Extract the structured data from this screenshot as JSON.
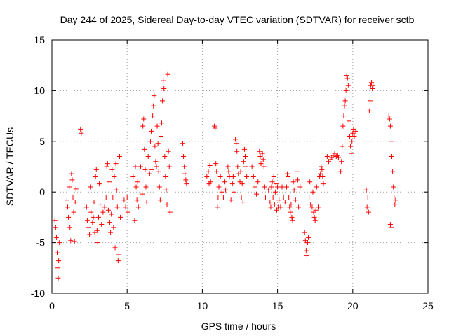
{
  "chart_data": {
    "type": "scatter",
    "title": "Day 244 of 2025, Sidereal Day-to-day VTEC variation (SDTVAR) for receiver sctb",
    "xlabel": "GPS time / hours",
    "ylabel": "SDTVAR / TECUs",
    "xlim": [
      0,
      25
    ],
    "ylim": [
      -10,
      15
    ],
    "x_ticks": [
      0,
      5,
      10,
      15,
      20,
      25
    ],
    "y_ticks": [
      -10,
      -5,
      0,
      5,
      10,
      15
    ],
    "x_tick_labels": [
      "0",
      "5",
      "10",
      "15",
      "20",
      "25"
    ],
    "y_tick_labels": [
      "-10",
      "-5",
      "0",
      "5",
      "10",
      "15"
    ],
    "grid": true,
    "marker": "+",
    "marker_color": "#ff0000",
    "series": [
      {
        "name": "SDTVAR",
        "points": [
          [
            0.2,
            -2.8
          ],
          [
            0.25,
            -3.5
          ],
          [
            0.3,
            -4.5
          ],
          [
            0.35,
            -6.0
          ],
          [
            0.4,
            -7.5
          ],
          [
            0.42,
            -8.5
          ],
          [
            0.45,
            -6.8
          ],
          [
            0.5,
            -5.0
          ],
          [
            1.0,
            -0.8
          ],
          [
            1.05,
            -1.5
          ],
          [
            1.1,
            -2.5
          ],
          [
            1.15,
            0.5
          ],
          [
            1.2,
            -3.5
          ],
          [
            1.25,
            -4.8
          ],
          [
            1.3,
            1.8
          ],
          [
            1.35,
            1.2
          ],
          [
            1.4,
            -0.5
          ],
          [
            1.45,
            -2.0
          ],
          [
            1.5,
            -4.9
          ],
          [
            1.55,
            -1.0
          ],
          [
            1.6,
            0.3
          ],
          [
            1.9,
            6.2
          ],
          [
            1.95,
            5.8
          ],
          [
            2.3,
            -1.5
          ],
          [
            2.35,
            -2.8
          ],
          [
            2.4,
            -3.5
          ],
          [
            2.5,
            -4.2
          ],
          [
            2.55,
            0.5
          ],
          [
            2.6,
            -2.0
          ],
          [
            2.7,
            -3.0
          ],
          [
            2.75,
            -2.5
          ],
          [
            2.8,
            -1.0
          ],
          [
            2.85,
            -4.0
          ],
          [
            2.9,
            1.5
          ],
          [
            2.95,
            2.2
          ],
          [
            3.0,
            -3.8
          ],
          [
            3.05,
            -5.0
          ],
          [
            3.1,
            -2.5
          ],
          [
            3.15,
            0.8
          ],
          [
            3.2,
            -1.2
          ],
          [
            3.3,
            -3.2
          ],
          [
            3.4,
            -2.0
          ],
          [
            3.5,
            -1.5
          ],
          [
            3.6,
            -0.5
          ],
          [
            3.65,
            2.5
          ],
          [
            3.7,
            2.8
          ],
          [
            3.75,
            -1.8
          ],
          [
            3.8,
            1.0
          ],
          [
            3.85,
            -3.0
          ],
          [
            3.9,
            -4.0
          ],
          [
            3.95,
            -2.2
          ],
          [
            4.0,
            2.2
          ],
          [
            4.05,
            -0.5
          ],
          [
            4.1,
            -3.5
          ],
          [
            4.15,
            1.5
          ],
          [
            4.2,
            -5.5
          ],
          [
            4.25,
            2.8
          ],
          [
            4.3,
            0.2
          ],
          [
            4.35,
            -1.5
          ],
          [
            4.4,
            -6.8
          ],
          [
            4.45,
            -6.2
          ],
          [
            4.5,
            3.5
          ],
          [
            4.55,
            -2.5
          ],
          [
            4.8,
            -0.8
          ],
          [
            4.9,
            -1.5
          ],
          [
            5.0,
            -0.5
          ],
          [
            5.05,
            -2.0
          ],
          [
            5.4,
            1.5
          ],
          [
            5.5,
            -2.8
          ],
          [
            5.55,
            2.5
          ],
          [
            5.6,
            0.5
          ],
          [
            5.65,
            -0.8
          ],
          [
            5.7,
            1.0
          ],
          [
            5.75,
            -1.5
          ],
          [
            5.9,
            2.5
          ],
          [
            6.0,
            -0.2
          ],
          [
            6.05,
            6.5
          ],
          [
            6.1,
            7.2
          ],
          [
            6.15,
            4.2
          ],
          [
            6.2,
            2.2
          ],
          [
            6.25,
            0.5
          ],
          [
            6.3,
            -1.0
          ],
          [
            6.4,
            3.5
          ],
          [
            6.5,
            1.8
          ],
          [
            6.55,
            5.0
          ],
          [
            6.6,
            6.0
          ],
          [
            6.65,
            2.2
          ],
          [
            6.7,
            7.5
          ],
          [
            6.75,
            8.5
          ],
          [
            6.8,
            9.5
          ],
          [
            6.85,
            4.5
          ],
          [
            6.9,
            3.0
          ],
          [
            6.95,
            2.5
          ],
          [
            7.0,
            6.5
          ],
          [
            7.05,
            4.8
          ],
          [
            7.1,
            2.0
          ],
          [
            7.15,
            0.5
          ],
          [
            7.2,
            -0.8
          ],
          [
            7.25,
            5.5
          ],
          [
            7.3,
            6.8
          ],
          [
            7.35,
            9.0
          ],
          [
            7.4,
            11.0
          ],
          [
            7.45,
            10.2
          ],
          [
            7.5,
            3.5
          ],
          [
            7.55,
            1.5
          ],
          [
            7.6,
            0.2
          ],
          [
            7.65,
            -1.2
          ],
          [
            7.7,
            11.6
          ],
          [
            7.75,
            4.0
          ],
          [
            7.8,
            2.5
          ],
          [
            7.85,
            -2.0
          ],
          [
            8.7,
            4.8
          ],
          [
            8.75,
            3.5
          ],
          [
            8.8,
            2.5
          ],
          [
            8.85,
            1.8
          ],
          [
            8.9,
            1.2
          ],
          [
            8.95,
            0.8
          ],
          [
            10.3,
            1.5
          ],
          [
            10.4,
            2.0
          ],
          [
            10.45,
            0.8
          ],
          [
            10.5,
            2.6
          ],
          [
            10.55,
            1.0
          ],
          [
            10.8,
            6.5
          ],
          [
            10.85,
            6.3
          ],
          [
            10.9,
            2.8
          ],
          [
            10.95,
            2.0
          ],
          [
            11.0,
            -1.5
          ],
          [
            11.05,
            -0.5
          ],
          [
            11.1,
            0.5
          ],
          [
            11.2,
            1.5
          ],
          [
            11.3,
            0.0
          ],
          [
            11.4,
            -0.5
          ],
          [
            11.5,
            1.0
          ],
          [
            11.55,
            0.2
          ],
          [
            11.7,
            2.5
          ],
          [
            11.75,
            2.0
          ],
          [
            11.8,
            1.5
          ],
          [
            11.9,
            -0.8
          ],
          [
            12.0,
            0.8
          ],
          [
            12.05,
            1.5
          ],
          [
            12.1,
            0.0
          ],
          [
            12.2,
            5.2
          ],
          [
            12.25,
            4.8
          ],
          [
            12.3,
            4.0
          ],
          [
            12.35,
            2.5
          ],
          [
            12.4,
            1.8
          ],
          [
            12.5,
            1.0
          ],
          [
            12.55,
            2.0
          ],
          [
            12.6,
            -0.5
          ],
          [
            12.65,
            0.8
          ],
          [
            12.7,
            -1.0
          ],
          [
            12.75,
            3.0
          ],
          [
            12.8,
            4.2
          ],
          [
            12.85,
            3.5
          ],
          [
            12.9,
            2.5
          ],
          [
            12.95,
            1.5
          ],
          [
            13.3,
            2.5
          ],
          [
            13.4,
            1.5
          ],
          [
            13.5,
            0.5
          ],
          [
            13.6,
            -0.2
          ],
          [
            13.7,
            1.0
          ],
          [
            13.8,
            4.0
          ],
          [
            13.85,
            3.5
          ],
          [
            13.9,
            2.8
          ],
          [
            14.0,
            3.8
          ],
          [
            14.05,
            3.2
          ],
          [
            14.1,
            2.5
          ],
          [
            14.15,
            0.5
          ],
          [
            14.2,
            -0.5
          ],
          [
            14.4,
            0.2
          ],
          [
            14.5,
            -1.0
          ],
          [
            14.55,
            -1.5
          ],
          [
            14.6,
            0.5
          ],
          [
            14.65,
            1.0
          ],
          [
            14.7,
            -0.5
          ],
          [
            14.75,
            1.5
          ],
          [
            14.8,
            -1.2
          ],
          [
            14.85,
            0.0
          ],
          [
            14.9,
            0.8
          ],
          [
            14.95,
            -1.8
          ],
          [
            15.0,
            0.5
          ],
          [
            15.05,
            -1.5
          ],
          [
            15.1,
            -0.8
          ],
          [
            15.2,
            -1.5
          ],
          [
            15.3,
            0.5
          ],
          [
            15.4,
            -0.5
          ],
          [
            15.5,
            -1.0
          ],
          [
            15.6,
            0.5
          ],
          [
            15.65,
            1.8
          ],
          [
            15.7,
            1.5
          ],
          [
            15.75,
            -0.5
          ],
          [
            15.8,
            -1.5
          ],
          [
            15.85,
            -2.0
          ],
          [
            15.9,
            -1.2
          ],
          [
            15.95,
            -2.5
          ],
          [
            16.0,
            -2.8
          ],
          [
            16.05,
            1.0
          ],
          [
            16.1,
            0.2
          ],
          [
            16.2,
            -0.8
          ],
          [
            16.3,
            2.0
          ],
          [
            16.35,
            1.2
          ],
          [
            16.4,
            -1.5
          ],
          [
            16.5,
            0.5
          ],
          [
            16.8,
            -4.0
          ],
          [
            16.85,
            -4.8
          ],
          [
            16.9,
            -5.8
          ],
          [
            16.95,
            -6.3
          ],
          [
            17.0,
            -5.0
          ],
          [
            17.05,
            -4.5
          ],
          [
            17.1,
            -0.5
          ],
          [
            17.15,
            1.0
          ],
          [
            17.2,
            -1.2
          ],
          [
            17.3,
            -1.5
          ],
          [
            17.35,
            0.0
          ],
          [
            17.4,
            -2.0
          ],
          [
            17.45,
            -2.5
          ],
          [
            17.5,
            -2.8
          ],
          [
            17.55,
            -1.8
          ],
          [
            17.6,
            0.5
          ],
          [
            17.7,
            -1.5
          ],
          [
            17.8,
            1.5
          ],
          [
            17.85,
            1.8
          ],
          [
            17.9,
            2.5
          ],
          [
            17.95,
            2.2
          ],
          [
            18.0,
            1.5
          ],
          [
            18.05,
            0.8
          ],
          [
            18.3,
            3.5
          ],
          [
            18.4,
            3.0
          ],
          [
            18.5,
            3.2
          ],
          [
            18.6,
            3.4
          ],
          [
            18.7,
            3.6
          ],
          [
            18.8,
            3.8
          ],
          [
            18.9,
            3.5
          ],
          [
            19.0,
            3.6
          ],
          [
            19.05,
            3.4
          ],
          [
            19.2,
            2.0
          ],
          [
            19.25,
            3.0
          ],
          [
            19.3,
            4.5
          ],
          [
            19.35,
            6.5
          ],
          [
            19.4,
            7.5
          ],
          [
            19.45,
            8.5
          ],
          [
            19.5,
            9.0
          ],
          [
            19.55,
            10.0
          ],
          [
            19.6,
            11.5
          ],
          [
            19.65,
            11.2
          ],
          [
            19.7,
            10.5
          ],
          [
            19.75,
            7.0
          ],
          [
            19.8,
            5.5
          ],
          [
            19.85,
            4.5
          ],
          [
            19.9,
            3.8
          ],
          [
            19.95,
            5.0
          ],
          [
            20.0,
            5.8
          ],
          [
            20.05,
            6.2
          ],
          [
            20.1,
            5.5
          ],
          [
            20.2,
            6.0
          ],
          [
            20.9,
            0.2
          ],
          [
            20.95,
            -1.5
          ],
          [
            21.0,
            -0.5
          ],
          [
            21.05,
            -2.0
          ],
          [
            21.1,
            8.0
          ],
          [
            21.15,
            9.0
          ],
          [
            21.2,
            10.5
          ],
          [
            21.25,
            10.8
          ],
          [
            21.3,
            10.2
          ],
          [
            21.35,
            10.5
          ],
          [
            22.4,
            7.5
          ],
          [
            22.45,
            7.2
          ],
          [
            22.5,
            6.5
          ],
          [
            22.55,
            5.0
          ],
          [
            22.6,
            3.5
          ],
          [
            22.65,
            2.0
          ],
          [
            22.7,
            0.5
          ],
          [
            22.75,
            -0.5
          ],
          [
            22.8,
            -1.2
          ],
          [
            22.85,
            -0.8
          ],
          [
            22.5,
            -3.2
          ],
          [
            22.55,
            -3.5
          ]
        ]
      }
    ]
  }
}
